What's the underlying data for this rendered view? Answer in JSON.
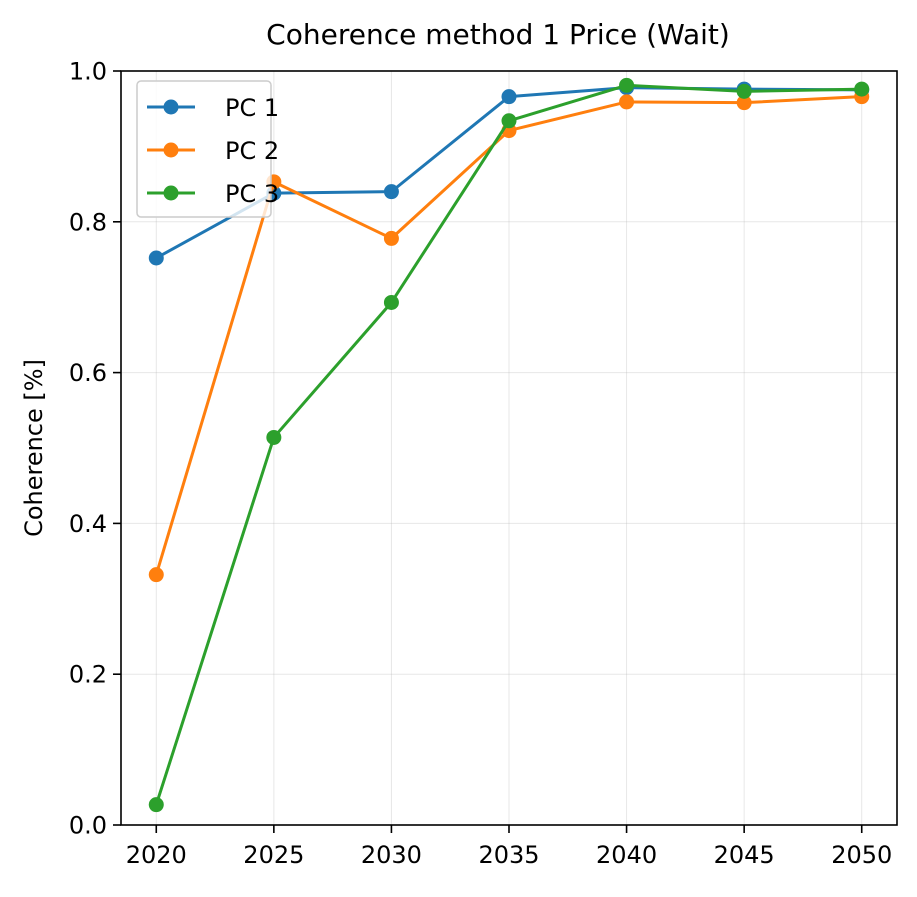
{
  "chart_data": {
    "type": "line",
    "title": "Coherence method 1 Price (Wait)",
    "xlabel": "",
    "ylabel": "Coherence [%]",
    "x": [
      2020,
      2025,
      2030,
      2035,
      2040,
      2045,
      2050
    ],
    "xticks": [
      "2020",
      "2025",
      "2030",
      "2035",
      "2040",
      "2045",
      "2050"
    ],
    "yticks": [
      "0.0",
      "0.2",
      "0.4",
      "0.6",
      "0.8",
      "1.0"
    ],
    "xlim": [
      2018.5,
      2051.5
    ],
    "ylim": [
      0.0,
      1.0
    ],
    "grid": true,
    "legend_position": "upper-left",
    "markers": "circle",
    "series": [
      {
        "name": "PC 1",
        "color": "#1f77b4",
        "values": [
          0.752,
          0.838,
          0.84,
          0.966,
          0.978,
          0.976,
          0.975
        ]
      },
      {
        "name": "PC 2",
        "color": "#ff7f0e",
        "values": [
          0.332,
          0.853,
          0.778,
          0.921,
          0.959,
          0.958,
          0.966
        ]
      },
      {
        "name": "PC 3",
        "color": "#2ca02c",
        "values": [
          0.027,
          0.514,
          0.693,
          0.934,
          0.981,
          0.973,
          0.976
        ]
      }
    ]
  }
}
